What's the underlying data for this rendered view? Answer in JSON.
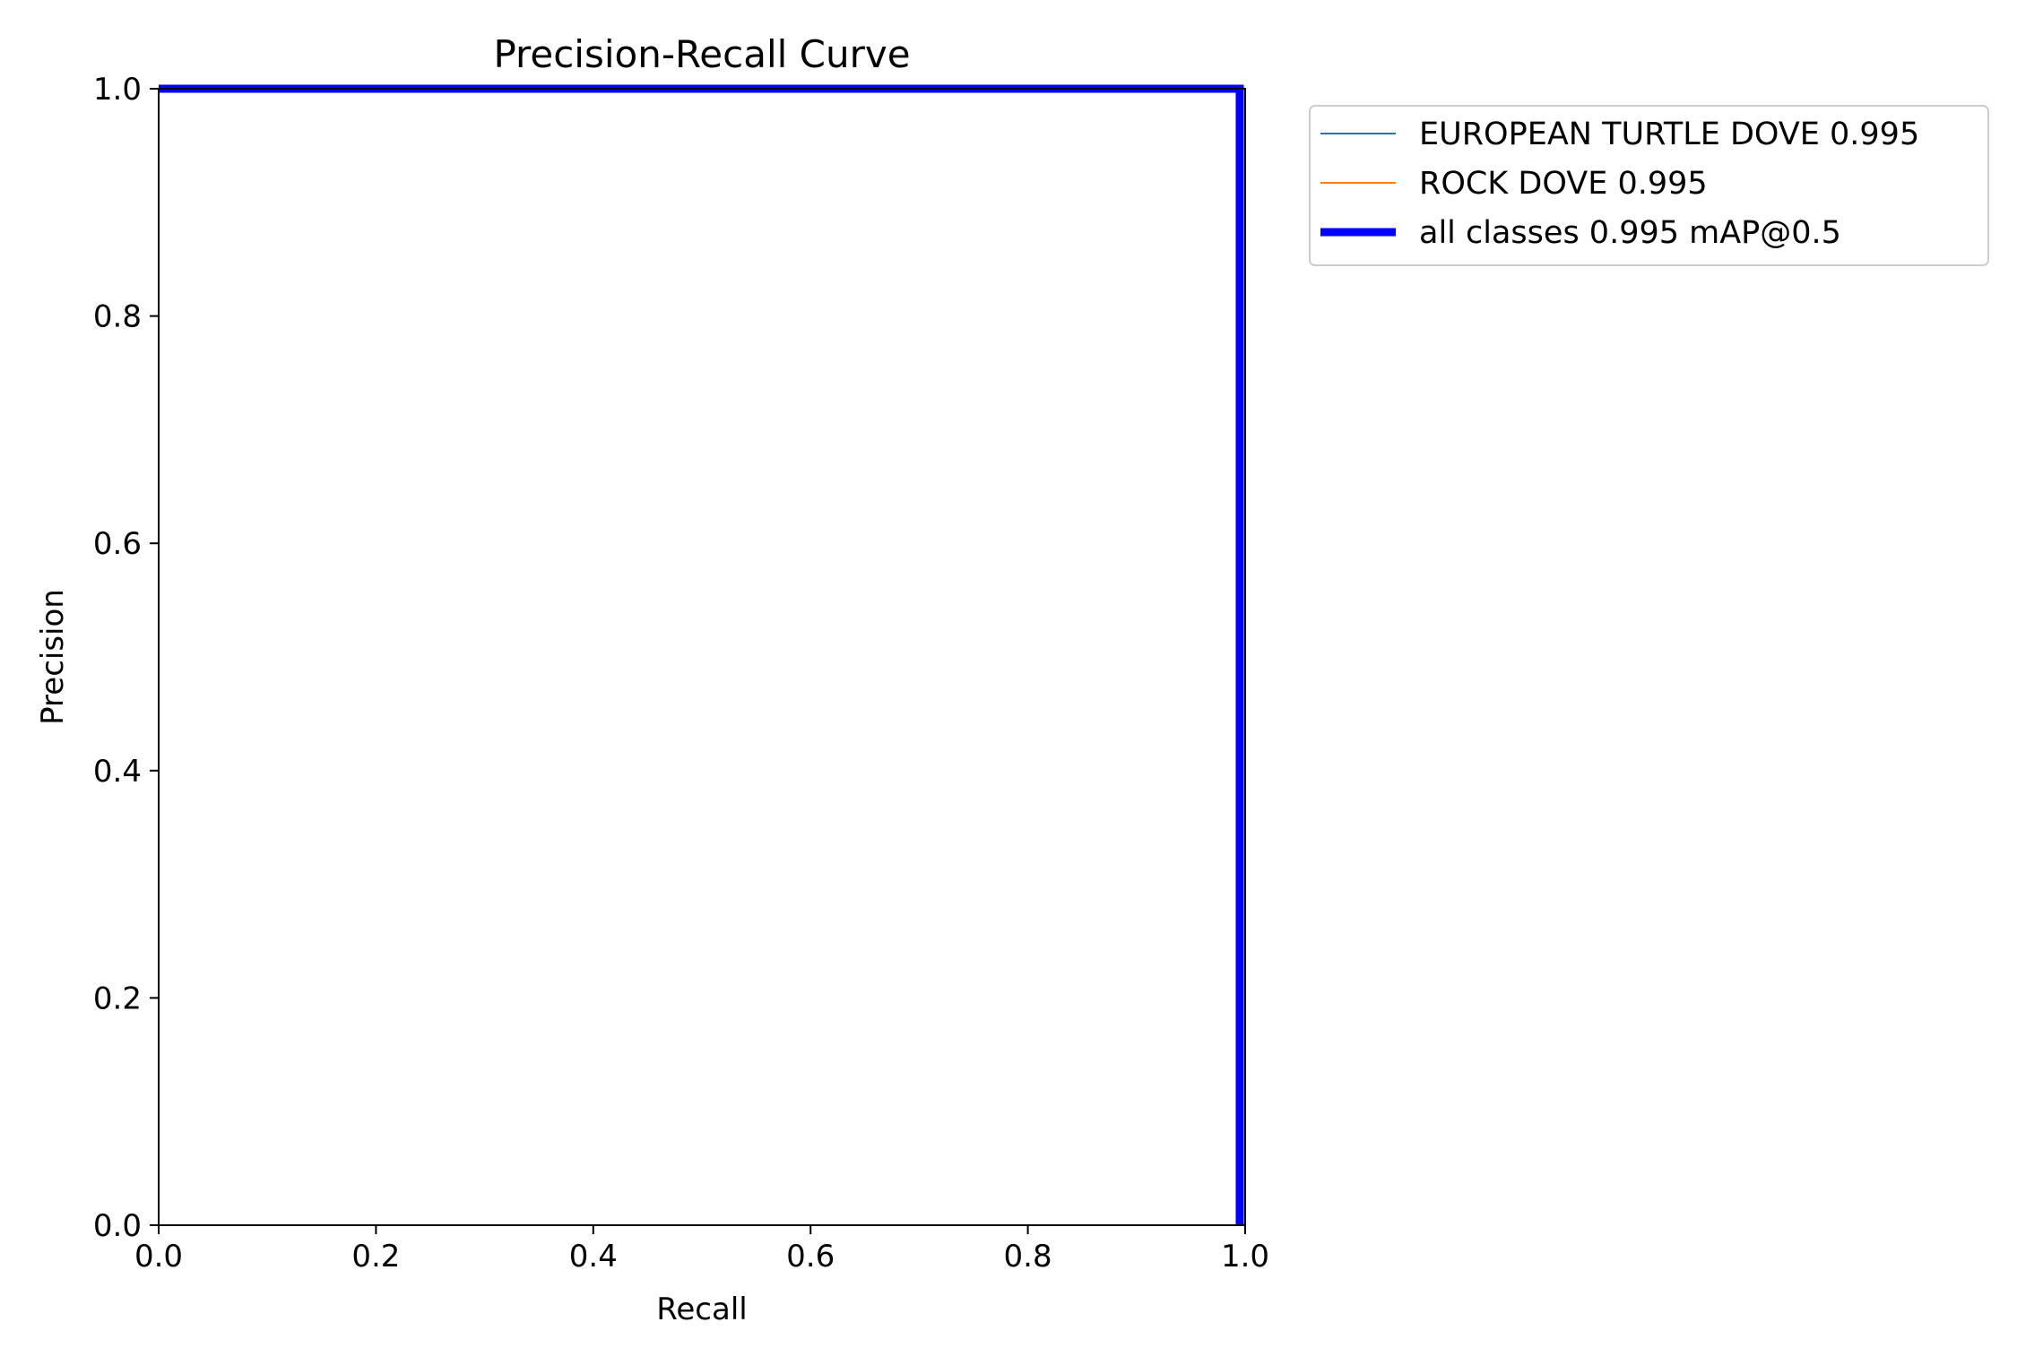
{
  "chart_data": {
    "type": "line",
    "title": "Precision-Recall Curve",
    "xlabel": "Recall",
    "ylabel": "Precision",
    "xlim": [
      0,
      1
    ],
    "ylim": [
      0,
      1
    ],
    "xticks": [
      "0.0",
      "0.2",
      "0.4",
      "0.6",
      "0.8",
      "1.0"
    ],
    "yticks": [
      "0.0",
      "0.2",
      "0.4",
      "0.6",
      "0.8",
      "1.0"
    ],
    "grid": false,
    "legend_position": "outside-top-right",
    "series": [
      {
        "name": "EUROPEAN TURTLE DOVE 0.995",
        "color": "#1f77b4",
        "width": "thin",
        "x": [
          0,
          0.995,
          0.995
        ],
        "y": [
          1,
          1,
          0
        ]
      },
      {
        "name": "ROCK DOVE 0.995",
        "color": "#ff7f0e",
        "width": "thin",
        "x": [
          0,
          0.995,
          0.995
        ],
        "y": [
          1,
          1,
          0
        ]
      },
      {
        "name": "all classes 0.995 mAP@0.5",
        "color": "#0000ff",
        "width": "thick",
        "x": [
          0,
          0.995,
          0.995
        ],
        "y": [
          1,
          1,
          0
        ]
      }
    ]
  }
}
